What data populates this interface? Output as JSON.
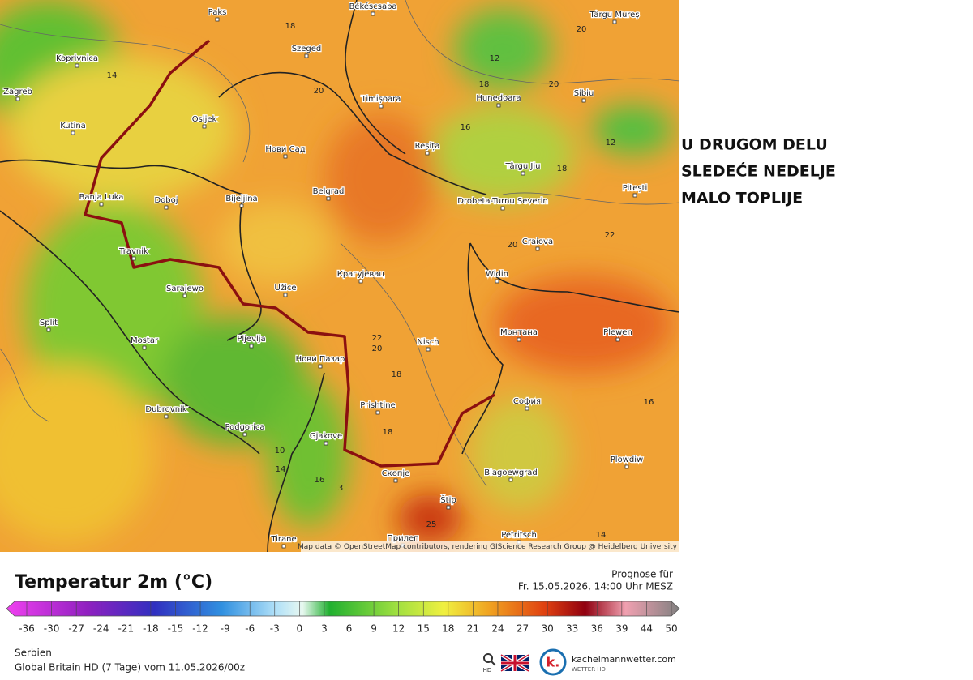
{
  "annotation": [
    "U DRUGOM DELU",
    "SLEDEĆE NEDELJE",
    "MALO TOPLIJE"
  ],
  "map": {
    "attribution": "Map data © OpenStreetMap contributors, rendering GIScience Research Group @ Heidelberg University",
    "cities": [
      "Paks",
      "Békéscsaba",
      "Târgu Mureș",
      "Koprivnica",
      "Zagreb",
      "Kutina",
      "Osijek",
      "Szeged",
      "Timișoara",
      "Hunedoara",
      "Sibiu",
      "Нови Сад",
      "Reșița",
      "Târgu Jiu",
      "Banja Luka",
      "Doboj",
      "Bijeljina",
      "Belgrad",
      "Drobeta-Turnu Severin",
      "Pitești",
      "Craiova",
      "Travnik",
      "Widin",
      "Sarajewo",
      "Užice",
      "Крагујевац",
      "Split",
      "Mostar",
      "Pljevlja",
      "Nisch",
      "Монтана",
      "Plewen",
      "Нови Пазар",
      "Dubrovnik",
      "Prishtine",
      "София",
      "Podgorica",
      "Gjakove",
      "Скопје",
      "Blagoewgrad",
      "Plowdiw",
      "Štip",
      "Tirane",
      "Petritsch",
      "Прилеп"
    ],
    "isotherms": [
      18,
      14,
      20,
      12,
      18,
      20,
      20,
      16,
      12,
      18,
      20,
      22,
      22,
      20,
      18,
      16,
      18,
      10,
      14,
      16,
      3,
      25,
      14
    ]
  },
  "legend": {
    "title": "Temperatur 2m (°C)",
    "forecast_label": "Prognose für",
    "forecast_time": "Fr. 15.05.2026, 14:00 Uhr MESZ",
    "ticks": [
      -36,
      -30,
      -27,
      -24,
      -21,
      -18,
      -15,
      -12,
      -9,
      -6,
      -3,
      0,
      3,
      6,
      9,
      12,
      15,
      18,
      21,
      24,
      27,
      30,
      33,
      36,
      39,
      44,
      50
    ]
  },
  "footer": {
    "region": "Serbien",
    "model": "Global Britain HD (7 Tage) vom 11.05.2026/00z",
    "hd": "HD",
    "logo_letter": "k.",
    "brand": "kachelmannwetter.com",
    "brand_sub": "WETTER HD"
  }
}
